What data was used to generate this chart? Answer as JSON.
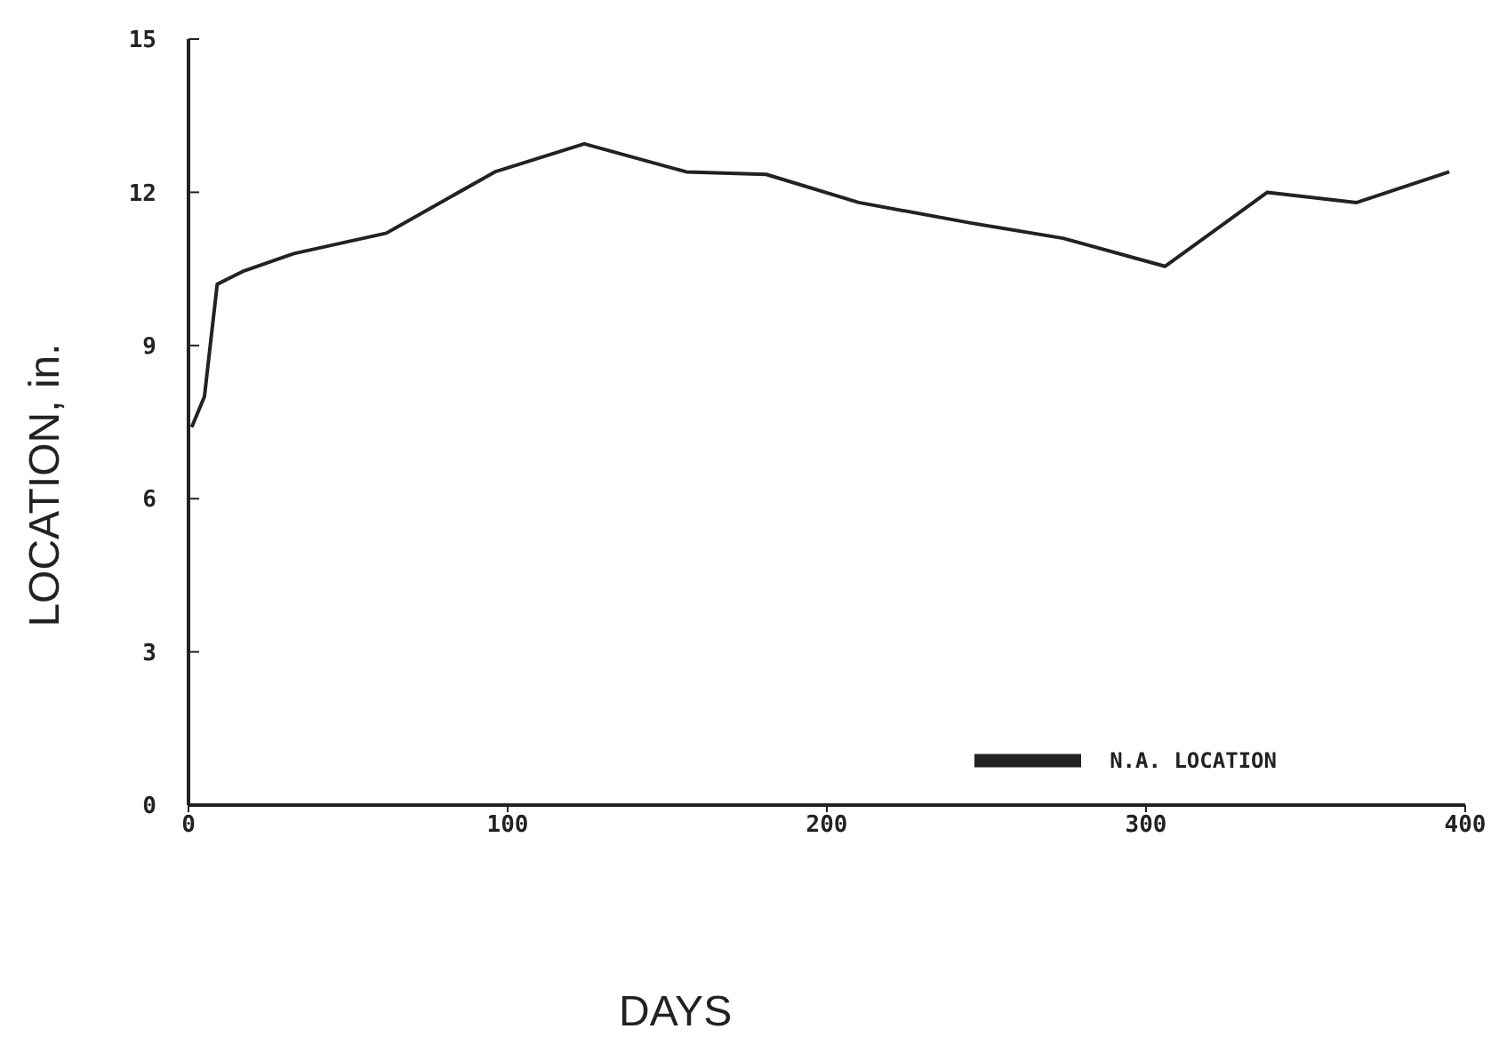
{
  "chart_data": {
    "type": "line",
    "xlabel": "DAYS",
    "ylabel": "LOCATION, in.",
    "legend": "bottom right",
    "marker": "none",
    "line_style": "solid",
    "grid": false,
    "xlim": [
      0,
      400
    ],
    "xticks": [
      0,
      100,
      200,
      300,
      400
    ],
    "ylim": [
      0,
      15
    ],
    "yticks": [
      0,
      3,
      6,
      9,
      12,
      15
    ],
    "x": [
      1,
      5,
      9,
      17,
      33,
      62,
      96,
      124,
      156,
      181,
      210,
      245,
      274,
      306,
      338,
      366,
      395
    ],
    "series": [
      {
        "name": "N.A. LOCATION",
        "color": "#222222",
        "values": [
          7.4,
          8.0,
          10.2,
          10.45,
          10.8,
          11.2,
          12.4,
          12.95,
          12.4,
          12.35,
          11.8,
          11.4,
          11.1,
          10.55,
          12.0,
          11.8,
          12.4
        ]
      }
    ]
  }
}
